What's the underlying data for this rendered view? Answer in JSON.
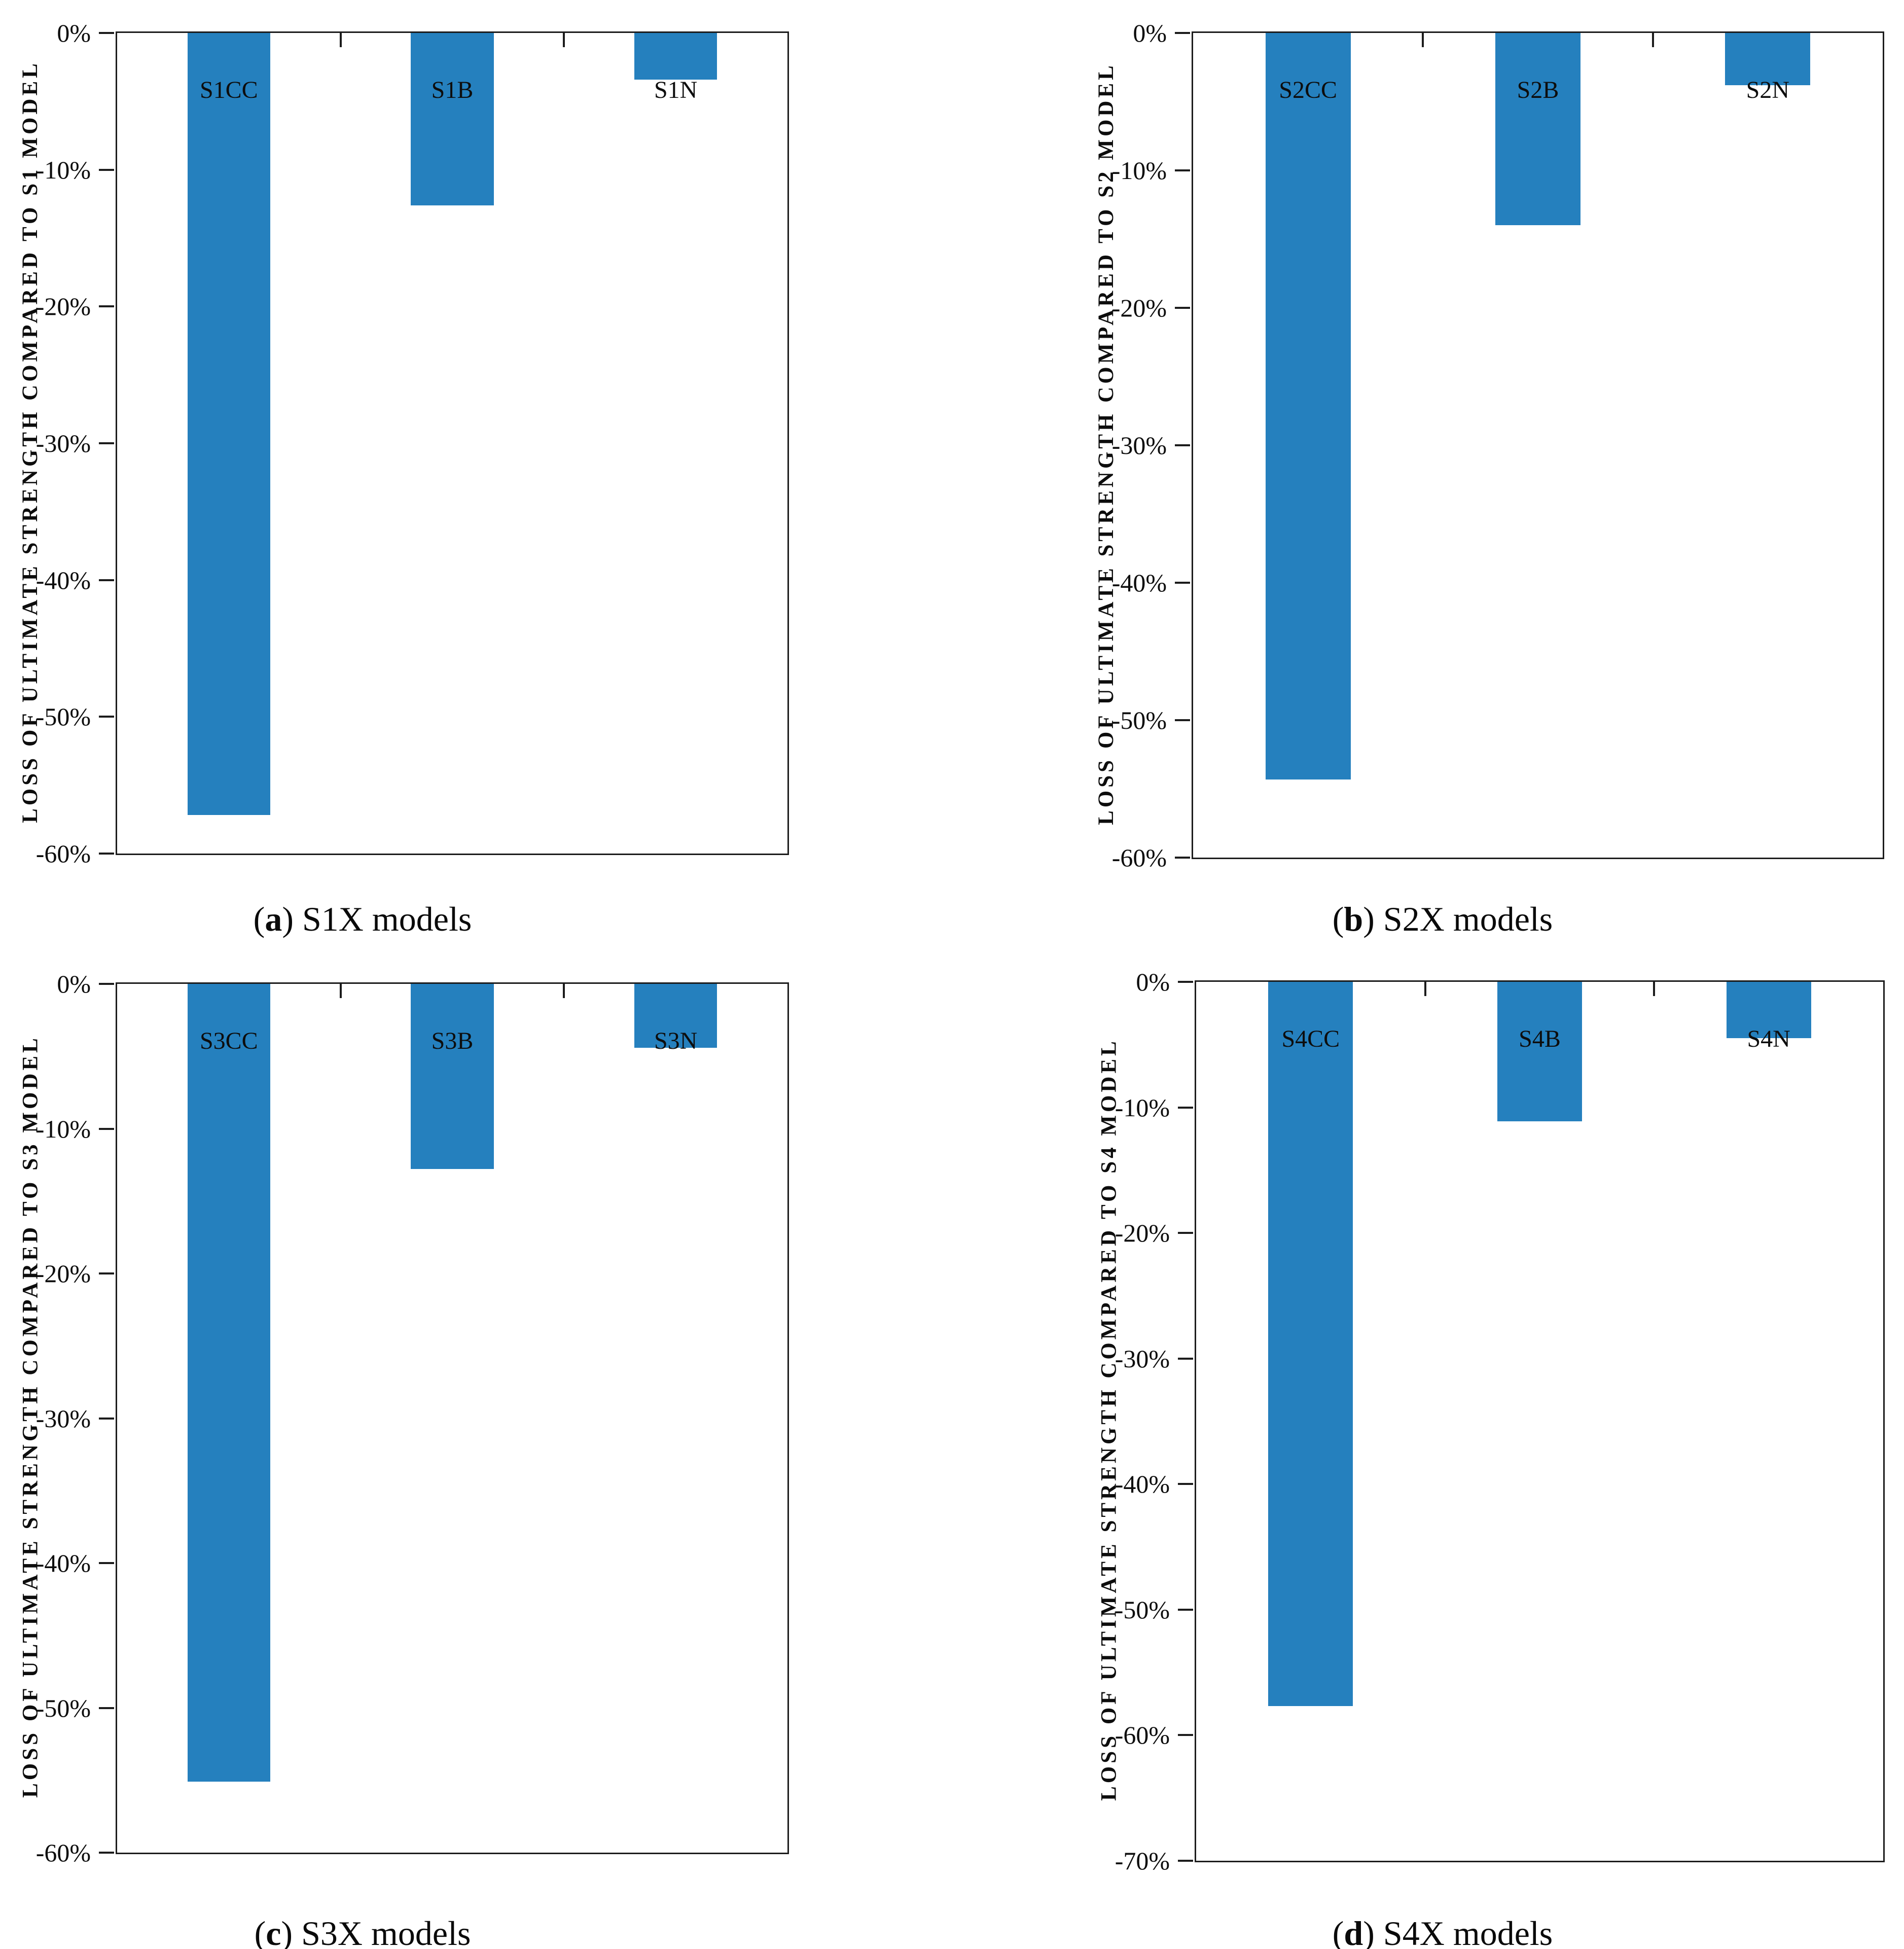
{
  "figure": {
    "bar_color": "#2580BE",
    "axis_color": "#1c1c1c",
    "text_color": "#111111"
  },
  "chart_data": [
    {
      "panel": "a",
      "type": "bar",
      "caption": {
        "open": "(",
        "letter": "a",
        "close": ")",
        "text": "S1X models"
      },
      "ylabel": "LOSS OF ULTIMATE STRENGTH COMPARED TO S1 MODEL",
      "xlabel": "",
      "categories": [
        "S1CC",
        "S1B",
        "S1N"
      ],
      "values": [
        -57.2,
        -12.6,
        -3.4
      ],
      "ylim": [
        0,
        -60
      ],
      "ytick_step": -10,
      "ytick_labels": [
        "0%",
        "-10%",
        "-20%",
        "-30%",
        "-40%",
        "-50%",
        "-60%"
      ],
      "grid": false,
      "legend": false,
      "bar_labels_inside_base": true
    },
    {
      "panel": "b",
      "type": "bar",
      "caption": {
        "open": "(",
        "letter": "b",
        "close": ")",
        "text": "S2X models"
      },
      "ylabel": "LOSS OF ULTIMATE STRENGTH COMPARED TO S2 MODEL",
      "xlabel": "",
      "categories": [
        "S2CC",
        "S2B",
        "S2N"
      ],
      "values": [
        -54.3,
        -14.0,
        -3.8
      ],
      "ylim": [
        0,
        -60
      ],
      "ytick_step": -10,
      "ytick_labels": [
        "0%",
        "-10%",
        "-20%",
        "-30%",
        "-40%",
        "-50%",
        "-60%"
      ],
      "grid": false,
      "legend": false,
      "bar_labels_inside_base": true
    },
    {
      "panel": "c",
      "type": "bar",
      "caption": {
        "open": "(",
        "letter": "c",
        "close": ")",
        "text": "S3X models"
      },
      "ylabel": "LOSS OF ULTIMATE STRENGTH COMPARED TO S3 MODEL",
      "xlabel": "",
      "categories": [
        "S3CC",
        "S3B",
        "S3N"
      ],
      "values": [
        -55.1,
        -12.8,
        -4.4
      ],
      "ylim": [
        0,
        -60
      ],
      "ytick_step": -10,
      "ytick_labels": [
        "0%",
        "-10%",
        "-20%",
        "-30%",
        "-40%",
        "-50%",
        "-60%"
      ],
      "grid": false,
      "legend": false,
      "bar_labels_inside_base": true
    },
    {
      "panel": "d",
      "type": "bar",
      "caption": {
        "open": "(",
        "letter": "d",
        "close": ")",
        "text": "S4X models"
      },
      "ylabel": "LOSS OF ULTIMATE STRENGTH COMPARED TO S4 MODEL",
      "xlabel": "",
      "categories": [
        "S4CC",
        "S4B",
        "S4N"
      ],
      "values": [
        -57.7,
        -11.1,
        -4.5
      ],
      "ylim": [
        0,
        -70
      ],
      "ytick_step": -10,
      "ytick_labels": [
        "0%",
        "-10%",
        "-20%",
        "-30%",
        "-40%",
        "-50%",
        "-60%",
        "-70%"
      ],
      "grid": false,
      "legend": false,
      "bar_labels_inside_base": true
    }
  ]
}
